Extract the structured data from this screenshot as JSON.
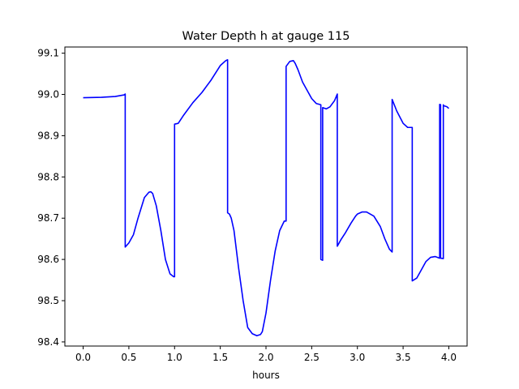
{
  "chart_data": {
    "type": "line",
    "title": "Water Depth h at gauge 115",
    "xlabel": "hours",
    "ylabel": "",
    "xlim": [
      -0.2,
      4.2
    ],
    "ylim": [
      98.39,
      99.115
    ],
    "x_ticks": [
      0.0,
      0.5,
      1.0,
      1.5,
      2.0,
      2.5,
      3.0,
      3.5,
      4.0
    ],
    "x_tick_labels": [
      "0.0",
      "0.5",
      "1.0",
      "1.5",
      "2.0",
      "2.5",
      "3.0",
      "3.5",
      "4.0"
    ],
    "y_ticks": [
      98.4,
      98.5,
      98.6,
      98.7,
      98.8,
      98.9,
      99.0,
      99.1
    ],
    "y_tick_labels": [
      "98.4",
      "98.5",
      "98.6",
      "98.7",
      "98.8",
      "98.9",
      "99.0",
      "99.1"
    ],
    "grid": false,
    "series": [
      {
        "color": "#0000ff",
        "x": [
          0.0,
          0.2,
          0.35,
          0.45,
          0.46,
          0.46,
          0.5,
          0.55,
          0.6,
          0.67,
          0.72,
          0.74,
          0.76,
          0.8,
          0.85,
          0.9,
          0.95,
          0.99,
          1.0,
          1.0,
          1.04,
          1.1,
          1.2,
          1.3,
          1.4,
          1.5,
          1.56,
          1.58,
          1.58,
          1.6,
          1.62,
          1.65,
          1.7,
          1.75,
          1.8,
          1.85,
          1.9,
          1.94,
          1.96,
          2.0,
          2.05,
          2.1,
          2.15,
          2.2,
          2.22,
          2.22,
          2.26,
          2.3,
          2.32,
          2.35,
          2.4,
          2.5,
          2.55,
          2.6,
          2.6,
          2.62,
          2.62,
          2.62,
          2.66,
          2.7,
          2.75,
          2.78,
          2.78,
          2.82,
          2.87,
          2.93,
          2.98,
          3.0,
          3.05,
          3.1,
          3.18,
          3.25,
          3.3,
          3.35,
          3.38,
          3.38,
          3.43,
          3.5,
          3.55,
          3.6,
          3.6,
          3.65,
          3.7,
          3.75,
          3.8,
          3.85,
          3.9,
          3.9,
          3.91,
          3.91,
          3.94,
          3.94,
          3.94,
          3.98,
          4.0
        ],
        "y": [
          98.992,
          98.993,
          98.995,
          98.999,
          99.001,
          98.63,
          98.64,
          98.66,
          98.7,
          98.75,
          98.763,
          98.764,
          98.76,
          98.73,
          98.67,
          98.6,
          98.565,
          98.558,
          98.558,
          98.928,
          98.93,
          98.95,
          98.98,
          99.005,
          99.035,
          99.07,
          99.082,
          99.084,
          98.713,
          98.71,
          98.7,
          98.67,
          98.58,
          98.5,
          98.435,
          98.42,
          98.415,
          98.418,
          98.425,
          98.47,
          98.55,
          98.62,
          98.67,
          98.693,
          98.693,
          99.068,
          99.08,
          99.082,
          99.075,
          99.06,
          99.03,
          98.99,
          98.978,
          98.975,
          98.6,
          98.598,
          98.598,
          98.968,
          98.965,
          98.97,
          98.985,
          99.001,
          98.632,
          98.648,
          98.665,
          98.688,
          98.705,
          98.71,
          98.715,
          98.715,
          98.705,
          98.68,
          98.65,
          98.625,
          98.618,
          98.988,
          98.96,
          98.93,
          98.92,
          98.92,
          98.548,
          98.555,
          98.575,
          98.595,
          98.605,
          98.607,
          98.603,
          98.976,
          98.975,
          98.603,
          98.602,
          98.975,
          98.973,
          98.97,
          98.966
        ]
      }
    ]
  }
}
